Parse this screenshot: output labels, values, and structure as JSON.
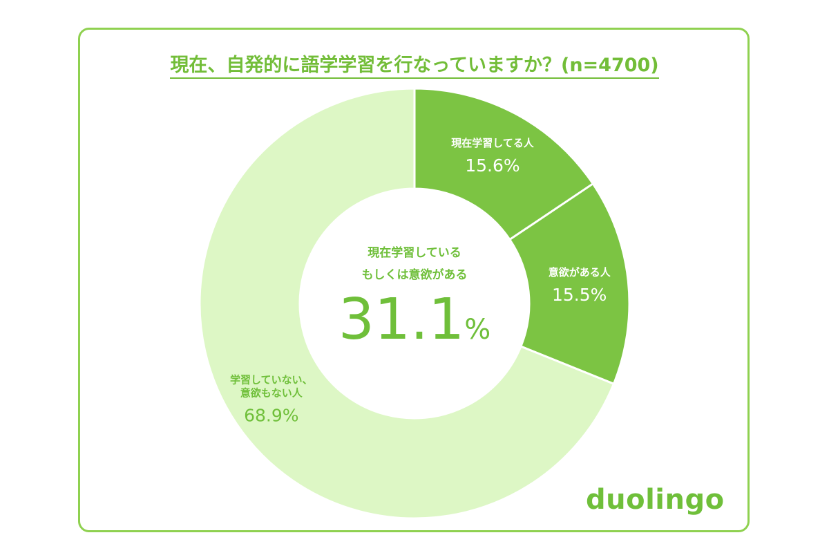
{
  "chart_data": {
    "type": "donut",
    "title": "現在、自発的に語学学習を行なっていますか？(n=4700)",
    "categories": [
      "現在学習してる人",
      "意欲がある人",
      "学習していない、\n意欲もない人"
    ],
    "values": [
      15.6,
      15.5,
      68.9
    ],
    "value_labels": [
      "15.6%",
      "15.5%",
      "68.9%"
    ],
    "colors": [
      "#7cc443",
      "#7cc443",
      "#ddf7c5"
    ],
    "label_colors": [
      "#ffffff",
      "#ffffff",
      "#6fbf3a"
    ],
    "center_text": "現在学習している\nもしくは意欲がある",
    "center_value": 31.1,
    "center_unit": "%",
    "logo": "duolingo"
  }
}
